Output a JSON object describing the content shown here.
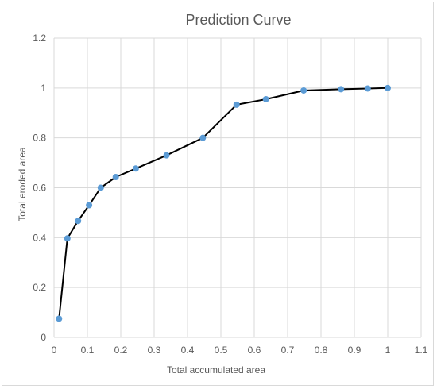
{
  "chart_data": {
    "type": "line",
    "title": "Prediction Curve",
    "xlabel": "Total accumulated area",
    "ylabel": "Total eroded area",
    "xlim": [
      0,
      1.1
    ],
    "ylim": [
      0,
      1.2
    ],
    "x_ticks": [
      "0",
      "0.1",
      "0.2",
      "0.3",
      "0.4",
      "0.5",
      "0.6",
      "0.7",
      "0.8",
      "0.9",
      "1",
      "1.1"
    ],
    "y_ticks": [
      "0",
      "0.2",
      "0.4",
      "0.6",
      "0.8",
      "1",
      "1.2"
    ],
    "grid": "vertical and horizontal major gridlines",
    "line_color": "#000000",
    "marker_color": "#5b9bd5",
    "grid_color": "#d9d9d9",
    "series": [
      {
        "x": [
          0.015,
          0.04,
          0.072,
          0.105,
          0.14,
          0.185,
          0.245,
          0.337,
          0.446,
          0.547,
          0.635,
          0.748,
          0.86,
          0.94,
          1.0
        ],
        "y": [
          0.075,
          0.397,
          0.467,
          0.53,
          0.6,
          0.643,
          0.677,
          0.73,
          0.8,
          0.933,
          0.955,
          0.99,
          0.995,
          0.998,
          1.0
        ]
      }
    ]
  }
}
